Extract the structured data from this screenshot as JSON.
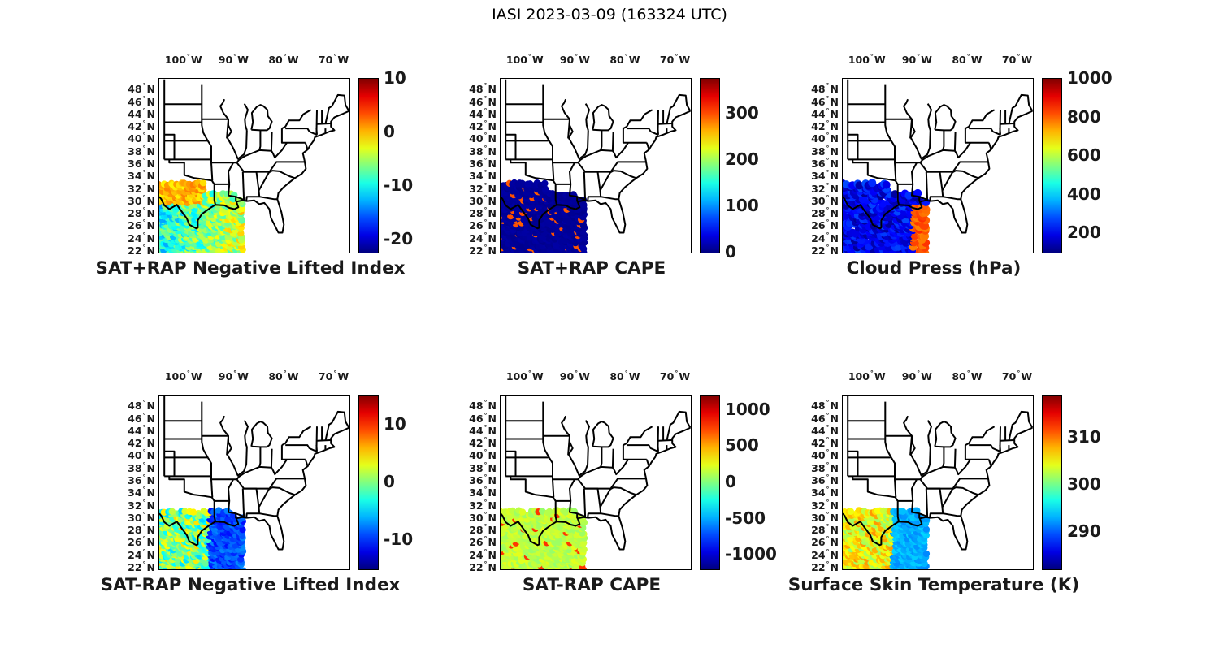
{
  "figure": {
    "title": "IASI 2023-03-09 (163324 UTC)"
  },
  "axes": {
    "lon_ticks": [
      {
        "deg": "100",
        "hemi": "W",
        "value": -100
      },
      {
        "deg": "90",
        "hemi": "W",
        "value": -90
      },
      {
        "deg": "80",
        "hemi": "W",
        "value": -80
      },
      {
        "deg": "70",
        "hemi": "W",
        "value": -70
      }
    ],
    "lat_ticks": [
      {
        "deg": "48",
        "hemi": "N",
        "value": 48
      },
      {
        "deg": "46",
        "hemi": "N",
        "value": 46
      },
      {
        "deg": "44",
        "hemi": "N",
        "value": 44
      },
      {
        "deg": "42",
        "hemi": "N",
        "value": 42
      },
      {
        "deg": "40",
        "hemi": "N",
        "value": 40
      },
      {
        "deg": "38",
        "hemi": "N",
        "value": 38
      },
      {
        "deg": "36",
        "hemi": "N",
        "value": 36
      },
      {
        "deg": "34",
        "hemi": "N",
        "value": 34
      },
      {
        "deg": "32",
        "hemi": "N",
        "value": 32
      },
      {
        "deg": "30",
        "hemi": "N",
        "value": 30
      },
      {
        "deg": "28",
        "hemi": "N",
        "value": 28
      },
      {
        "deg": "26",
        "hemi": "N",
        "value": 26
      },
      {
        "deg": "24",
        "hemi": "N",
        "value": 24
      },
      {
        "deg": "22",
        "hemi": "N",
        "value": 22
      }
    ],
    "lon_range": [
      -105,
      -67
    ],
    "lat_range": [
      22,
      50
    ]
  },
  "colormap": "jet",
  "chart_data": [
    {
      "type": "scatter",
      "title": "SAT+RAP Negative Lifted Index",
      "colorbar_range": [
        -22.5,
        10
      ],
      "colorbar_ticks": [
        {
          "label": "10",
          "value": 10
        },
        {
          "label": "0",
          "value": 0
        },
        {
          "label": "-10",
          "value": -10
        },
        {
          "label": "-20",
          "value": -20
        }
      ],
      "field": "swath",
      "typical_value": -6,
      "high_value": 2
    },
    {
      "type": "scatter",
      "title": "SAT+RAP CAPE",
      "colorbar_range": [
        0,
        375
      ],
      "colorbar_ticks": [
        {
          "label": "300",
          "value": 300
        },
        {
          "label": "200",
          "value": 200
        },
        {
          "label": "100",
          "value": 100
        },
        {
          "label": "0",
          "value": 0
        }
      ],
      "field": "swath",
      "typical_value": 5,
      "high_value": 300
    },
    {
      "type": "scatter",
      "title": "Cloud Press (hPa)",
      "colorbar_range": [
        100,
        1000
      ],
      "colorbar_ticks": [
        {
          "label": "1000",
          "value": 1000
        },
        {
          "label": "800",
          "value": 800
        },
        {
          "label": "600",
          "value": 600
        },
        {
          "label": "400",
          "value": 400
        },
        {
          "label": "200",
          "value": 200
        }
      ],
      "field": "cloud",
      "typical_value": 200,
      "high_value": 850
    },
    {
      "type": "scatter",
      "title": "SAT-RAP Negative Lifted Index",
      "colorbar_range": [
        -15,
        15
      ],
      "colorbar_ticks": [
        {
          "label": "10",
          "value": 10
        },
        {
          "label": "0",
          "value": 0
        },
        {
          "label": "-10",
          "value": -10
        }
      ],
      "field": "diff",
      "typical_value": 0,
      "high_value": 6
    },
    {
      "type": "scatter",
      "title": "SAT-RAP CAPE",
      "colorbar_range": [
        -1200,
        1200
      ],
      "colorbar_ticks": [
        {
          "label": "1000",
          "value": 1000
        },
        {
          "label": "500",
          "value": 500
        },
        {
          "label": "0",
          "value": 0
        },
        {
          "label": "-500",
          "value": -500
        },
        {
          "label": "-1000",
          "value": -1000
        }
      ],
      "field": "cape_diff",
      "typical_value": 0,
      "high_value": 800
    },
    {
      "type": "scatter",
      "title": "Surface Skin Temperature (K)",
      "colorbar_range": [
        282,
        319
      ],
      "colorbar_ticks": [
        {
          "label": "310",
          "value": 310
        },
        {
          "label": "300",
          "value": 300
        },
        {
          "label": "290",
          "value": 290
        }
      ],
      "field": "skin",
      "typical_value": 297,
      "high_value": 309
    }
  ]
}
